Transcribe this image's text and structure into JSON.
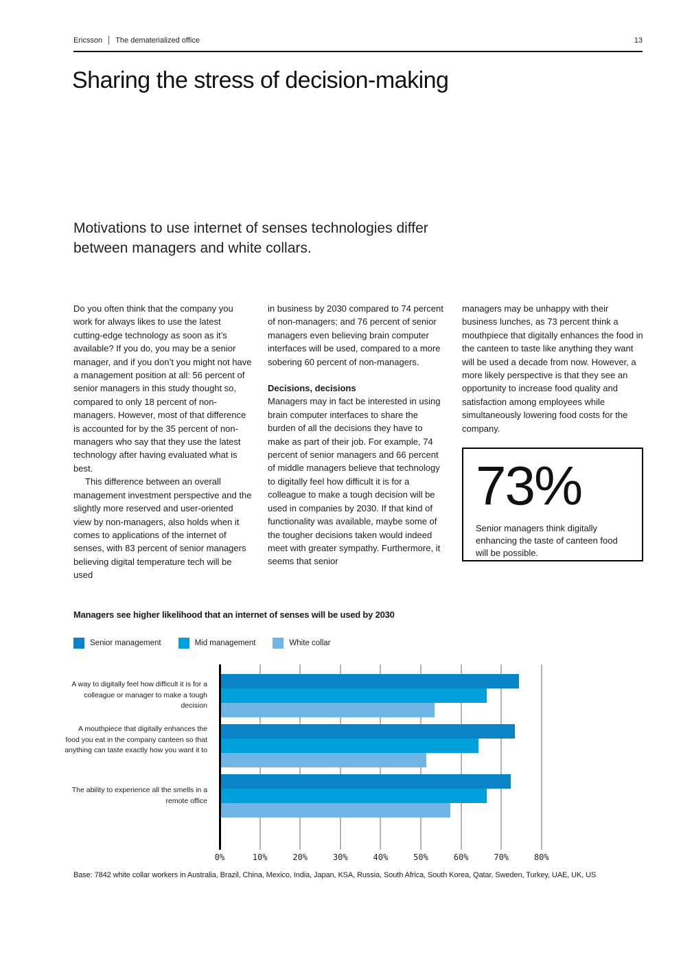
{
  "header": {
    "brand": "Ericsson",
    "doc_title": "The dematerialized office",
    "page_number": "13"
  },
  "title": "Sharing the stress of decision-making",
  "intro": "Motivations to use internet of senses technologies differ between managers and white collars.",
  "columns": {
    "col1_para1": "Do you often think that the company you work for always likes to use the latest cutting-edge technology as soon as it’s available? If you do, you may be a senior manager, and if you don’t you might not have a management position at all: 56 percent of senior managers in this study thought so, compared to only 18 percent of non-managers. However, most of that difference is accounted for by the 35 percent of non-managers who say that they use the latest technology after having evaluated what is best.",
    "col1_para2": "This difference between an overall management investment perspective and the slightly more reserved and user-oriented view by non-managers, also holds when it comes to applications of the internet of senses, with 83 percent of senior managers believing digital temperature tech will be used",
    "col2_para1": "in business by 2030 compared to 74 percent of non-managers; and 76 percent of senior managers even believing brain computer interfaces will be used, compared to a more sobering 60 percent of non-managers.",
    "col2_heading": "Decisions, decisions",
    "col2_para2": "Managers may in fact be interested in using brain computer interfaces to share the burden of all the decisions they have to make as part of their job. For example, 74 percent of senior managers and 66 percent of middle managers believe that technology to digitally feel how difficult it is for a colleague to make a tough decision will be used in companies by 2030. If that kind of functionality was available, maybe some of the tougher decisions taken would indeed meet with greater sympathy. Furthermore, it seems that senior",
    "col3_para1": "managers may be unhappy with their business lunches, as 73 percent think a mouthpiece that digitally enhances the food in the canteen to taste like anything they want will be used a decade from now. However, a more likely perspective is that they see an opportunity to increase food quality and satisfaction among employees while simultaneously lowering food costs for the company."
  },
  "stat_box": {
    "value": "73%",
    "caption": "Senior managers think digitally enhancing the taste of canteen food will be possible."
  },
  "chart_data": {
    "type": "bar",
    "orientation": "horizontal",
    "title": "Managers see higher likelihood that an internet of senses will be used by 2030",
    "categories": [
      "A way to digitally feel how difficult it is for a colleague or manager to make a tough decision",
      "A mouthpiece that digitally enhances the food you eat in the company canteen so that anything can taste exactly how you want it to",
      "The ability to experience all the smells in a remote office"
    ],
    "series": [
      {
        "name": "Senior management",
        "color": "#0a84c6",
        "values": [
          74,
          73,
          72
        ]
      },
      {
        "name": "Mid management",
        "color": "#00a0dc",
        "values": [
          66,
          64,
          66
        ]
      },
      {
        "name": "White collar",
        "color": "#6fb5e6",
        "values": [
          53,
          51,
          57
        ]
      }
    ],
    "xlim": [
      0,
      80
    ],
    "x_tick_labels": [
      "0%",
      "10%",
      "20%",
      "30%",
      "40%",
      "50%",
      "60%",
      "70%",
      "80%"
    ],
    "grid": true,
    "legend_position": "top"
  },
  "base_note": "Base: 7842 white collar workers in Australia, Brazil, China, Mexico, India, Japan, KSA, Russia, South Africa, South Korea, Qatar, Sweden, Turkey, UAE, UK, US"
}
